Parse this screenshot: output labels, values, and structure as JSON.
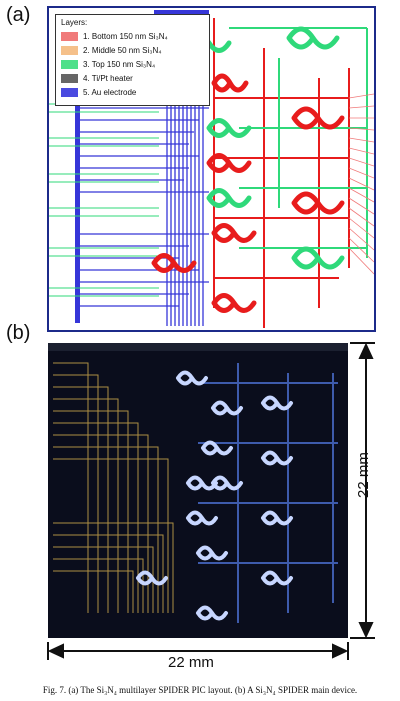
{
  "panels": {
    "a_label": "(a)",
    "b_label": "(b)"
  },
  "legend": {
    "title": "Layers:",
    "items": [
      {
        "label": "1. Bottom 150 nm Si₃N₄",
        "color": "#f07a7a"
      },
      {
        "label": "2. Middle 50 nm Si₃N₄",
        "color": "#f5c08a"
      },
      {
        "label": "3. Top 150 nm Si₃N₄",
        "color": "#4fe08a"
      },
      {
        "label": "4. Ti/Pt heater",
        "color": "#666666"
      },
      {
        "label": "5. Au electrode",
        "color": "#4a4ae0"
      }
    ]
  },
  "dimensions": {
    "height_label": "22 mm",
    "width_label": "22 mm"
  },
  "caption": "Fig. 7. (a) The Si₃N₄ multilayer SPIDER PIC layout. (b) A Si₃N₄ SPIDER main device.",
  "colors": {
    "frame": "#1c2a8a",
    "waveguide_red": "#e81c1c",
    "waveguide_green": "#2fd97a",
    "electrode_blue": "#3636d8",
    "photo_bg": "#0a0d1c",
    "gold": "#c9a54a"
  }
}
